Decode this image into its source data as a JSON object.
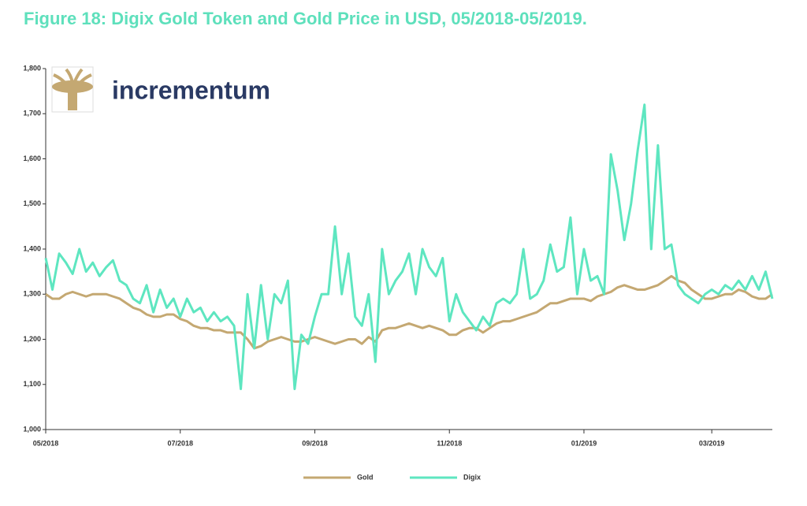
{
  "chart_data": {
    "type": "line",
    "title": "Figure 18: Digix Gold Token and Gold Price in USD, 05/2018-05/2019.",
    "logo": "incrementum",
    "categories": [
      "05/2018",
      null,
      null,
      null,
      null,
      null,
      null,
      null,
      null,
      null,
      null,
      null,
      null,
      null,
      null,
      null,
      null,
      null,
      null,
      null,
      "07/2018",
      null,
      null,
      null,
      null,
      null,
      null,
      null,
      null,
      null,
      null,
      null,
      null,
      null,
      null,
      null,
      null,
      null,
      null,
      null,
      "09/2018",
      null,
      null,
      null,
      null,
      null,
      null,
      null,
      null,
      null,
      null,
      null,
      null,
      null,
      null,
      null,
      null,
      null,
      null,
      null,
      "11/2018",
      null,
      null,
      null,
      null,
      null,
      null,
      null,
      null,
      null,
      null,
      null,
      null,
      null,
      null,
      null,
      null,
      null,
      null,
      null,
      "01/2019",
      null,
      null,
      null,
      null,
      null,
      null,
      null,
      null,
      null,
      null,
      null,
      null,
      null,
      null,
      null,
      null,
      null,
      null,
      "03/2019",
      null,
      null,
      null,
      null,
      null,
      null,
      null,
      null,
      null
    ],
    "series": [
      {
        "name": "Gold",
        "color": "#c4a872",
        "values": [
          1300,
          1290,
          1290,
          1300,
          1305,
          1300,
          1295,
          1300,
          1300,
          1300,
          1295,
          1290,
          1280,
          1270,
          1265,
          1255,
          1250,
          1250,
          1255,
          1255,
          1245,
          1240,
          1230,
          1225,
          1225,
          1220,
          1220,
          1215,
          1215,
          1215,
          1200,
          1180,
          1185,
          1195,
          1200,
          1205,
          1200,
          1195,
          1195,
          1200,
          1205,
          1200,
          1195,
          1190,
          1195,
          1200,
          1200,
          1190,
          1205,
          1195,
          1220,
          1225,
          1225,
          1230,
          1235,
          1230,
          1225,
          1230,
          1225,
          1220,
          1210,
          1210,
          1220,
          1225,
          1225,
          1215,
          1225,
          1235,
          1240,
          1240,
          1245,
          1250,
          1255,
          1260,
          1270,
          1280,
          1280,
          1285,
          1290,
          1290,
          1290,
          1285,
          1295,
          1300,
          1305,
          1315,
          1320,
          1315,
          1310,
          1310,
          1315,
          1320,
          1330,
          1340,
          1330,
          1325,
          1310,
          1300,
          1290,
          1290,
          1295,
          1300,
          1300,
          1310,
          1305,
          1295,
          1290,
          1290,
          1300
        ]
      },
      {
        "name": "Digix",
        "color": "#5ee6c0",
        "values": [
          1380,
          1310,
          1390,
          1370,
          1345,
          1400,
          1350,
          1370,
          1340,
          1360,
          1375,
          1330,
          1320,
          1290,
          1280,
          1320,
          1260,
          1310,
          1270,
          1290,
          1250,
          1290,
          1260,
          1270,
          1240,
          1260,
          1240,
          1250,
          1230,
          1090,
          1300,
          1180,
          1320,
          1200,
          1300,
          1280,
          1330,
          1090,
          1210,
          1190,
          1250,
          1300,
          1300,
          1450,
          1300,
          1390,
          1250,
          1230,
          1300,
          1150,
          1400,
          1300,
          1330,
          1350,
          1390,
          1300,
          1400,
          1360,
          1340,
          1380,
          1240,
          1300,
          1260,
          1240,
          1220,
          1250,
          1230,
          1280,
          1290,
          1280,
          1300,
          1400,
          1290,
          1300,
          1330,
          1410,
          1350,
          1360,
          1470,
          1300,
          1400,
          1330,
          1340,
          1300,
          1610,
          1530,
          1420,
          1500,
          1620,
          1720,
          1400,
          1630,
          1400,
          1410,
          1320,
          1300,
          1290,
          1280,
          1300,
          1310,
          1300,
          1320,
          1310,
          1330,
          1310,
          1340,
          1310,
          1350,
          1290
        ]
      }
    ],
    "ylim": [
      1000,
      1800
    ],
    "yticks": [
      {
        "value": 1000,
        "label": "1,000"
      },
      {
        "value": 1100,
        "label": "1,100"
      },
      {
        "value": 1200,
        "label": "1,200"
      },
      {
        "value": 1300,
        "label": "1,300"
      },
      {
        "value": 1400,
        "label": "1,400"
      },
      {
        "value": 1500,
        "label": "1,500"
      },
      {
        "value": 1600,
        "label": "1,600"
      },
      {
        "value": 1700,
        "label": "1,700"
      },
      {
        "value": 1800,
        "label": "1,800"
      }
    ],
    "legend": "bottom"
  }
}
